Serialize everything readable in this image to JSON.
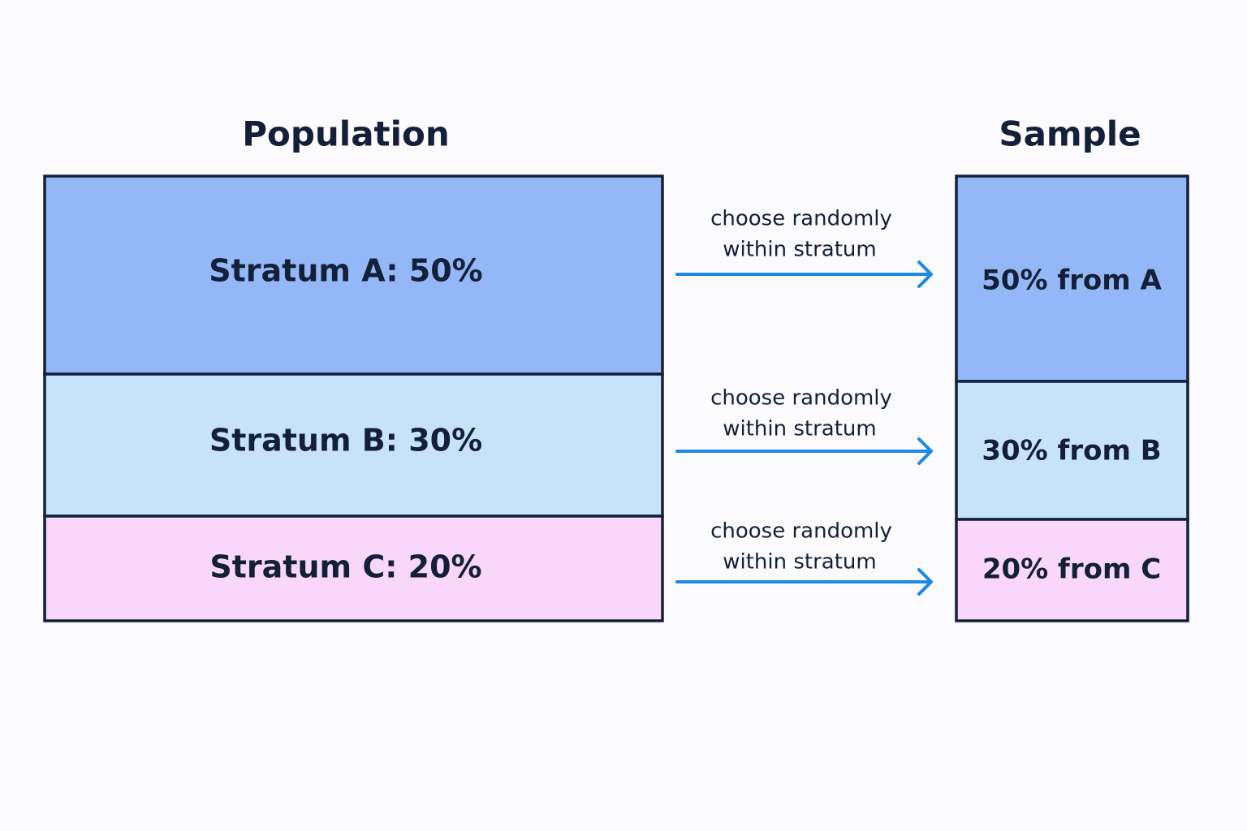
{
  "population": {
    "title": "Population",
    "strata": [
      "Stratum A: 50%",
      "Stratum B: 30%",
      "Stratum C: 20%"
    ]
  },
  "arrows": [
    [
      "choose randomly",
      "within stratum"
    ],
    [
      "choose randomly",
      "within stratum"
    ],
    [
      "choose randomly",
      "within stratum"
    ]
  ],
  "sample": {
    "title": "Sample",
    "strata": [
      "50% from A",
      "30% from B",
      "20% from C"
    ]
  }
}
